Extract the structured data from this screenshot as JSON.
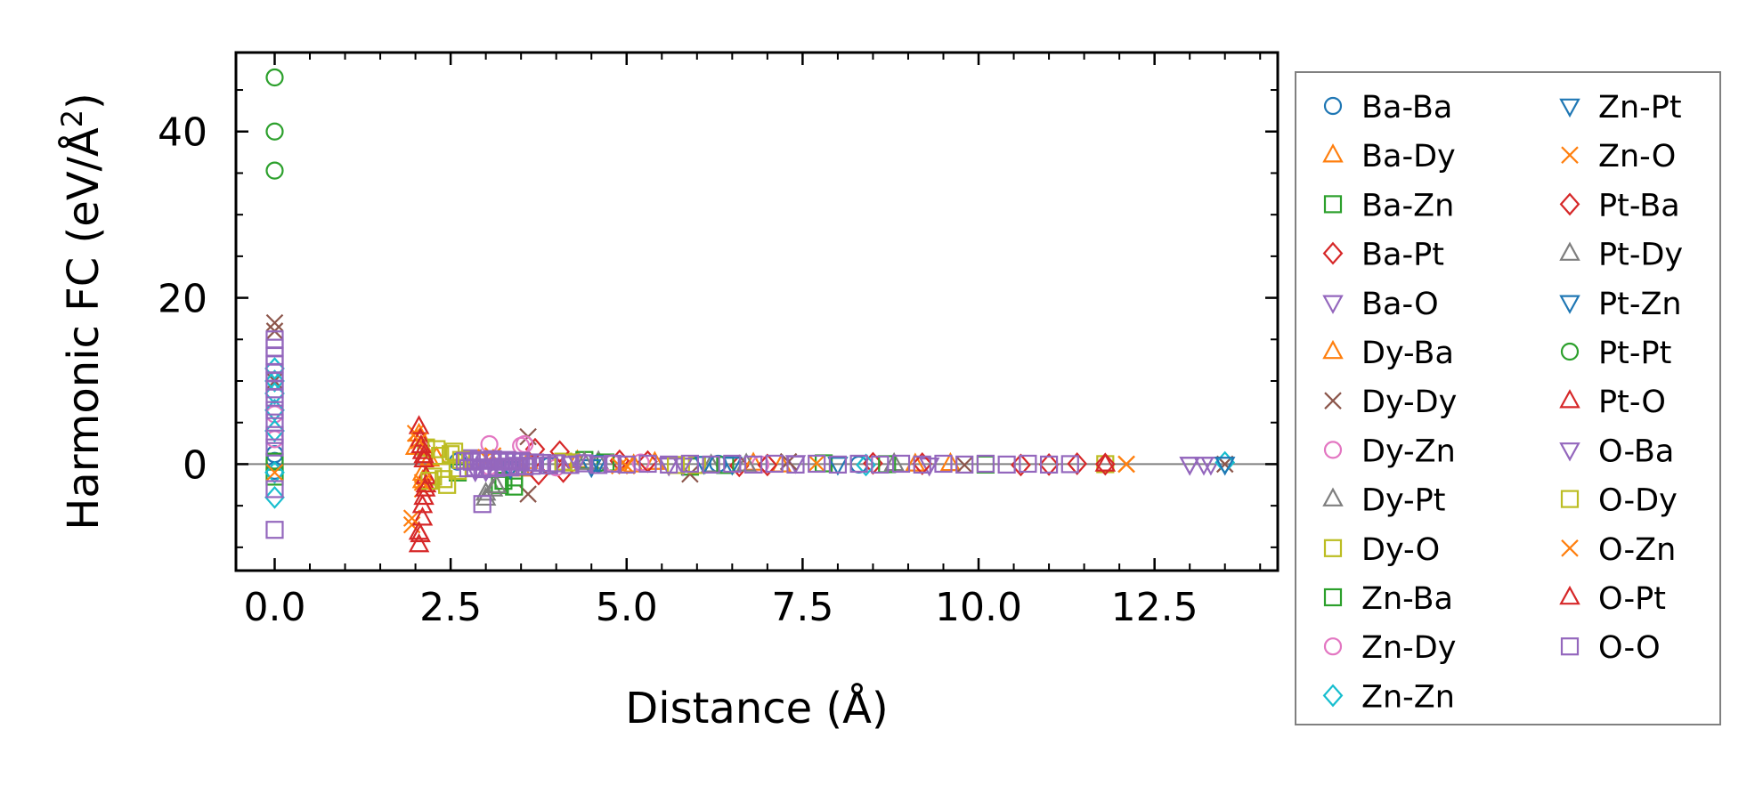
{
  "chart_data": {
    "type": "scatter",
    "title": "",
    "xlabel": "Distance (Å)",
    "ylabel": "Harmonic FC (eV/Å",
    "ylabel_sup": "2",
    "ylabel_end": ")",
    "xlim": [
      -0.55,
      14.25
    ],
    "ylim": [
      -12.8,
      49.5
    ],
    "xticks": [
      0.0,
      2.5,
      5.0,
      7.5,
      10.0,
      12.5
    ],
    "xtick_labels": [
      "0.0",
      "2.5",
      "5.0",
      "7.5",
      "10.0",
      "12.5"
    ],
    "yticks": [
      0,
      20,
      40
    ],
    "ytick_labels": [
      "0",
      "20",
      "40"
    ],
    "x_minor_step": 0.5,
    "y_minor_step": 5,
    "zero_line": 0,
    "legend_position": "right-outside",
    "series": [
      {
        "name": "Ba-Ba",
        "marker": "circle",
        "color": "#1f77b4",
        "x": [
          0,
          0,
          0,
          2.6,
          3.9,
          4.6,
          6.3,
          8.3
        ],
        "y": [
          1.2,
          -0.8,
          0.4,
          0.3,
          -0.2,
          0.1,
          0.05,
          -0.05
        ]
      },
      {
        "name": "Ba-Dy",
        "marker": "triangle-up",
        "color": "#ff7f0e",
        "x": [
          2.05,
          2.1,
          2.3,
          3.5,
          4.3,
          5.4,
          7.2,
          9.6
        ],
        "y": [
          3.6,
          -2.0,
          0.8,
          -0.6,
          0.4,
          0.2,
          -0.1,
          0.05
        ]
      },
      {
        "name": "Ba-Zn",
        "marker": "square",
        "color": "#2ca02c",
        "x": [
          2.6,
          3.2,
          3.4,
          4.4,
          5.9,
          7.8,
          10.1
        ],
        "y": [
          -1.0,
          -2.5,
          -1.6,
          0.5,
          -0.3,
          0.1,
          -0.05
        ]
      },
      {
        "name": "Ba-Pt",
        "marker": "diamond",
        "color": "#d62728",
        "x": [
          3.7,
          4.1,
          4.9,
          6.6,
          8.5,
          10.6,
          11.4
        ],
        "y": [
          1.8,
          -0.9,
          0.4,
          -0.2,
          0.1,
          -0.1,
          0.05
        ]
      },
      {
        "name": "Ba-O",
        "marker": "triangle-down",
        "color": "#9467bd",
        "x": [
          2.8,
          3.0,
          4.2,
          5.6,
          7.4,
          9.3,
          13.0,
          13.3
        ],
        "y": [
          0.9,
          -0.8,
          0.4,
          -0.1,
          0.2,
          -0.1,
          0.0,
          0.0
        ]
      },
      {
        "name": "Dy-Ba",
        "marker": "triangle-up",
        "color": "#ff7f0e",
        "x": [
          2.0,
          2.1,
          2.2,
          3.6,
          5.1,
          6.8,
          9.1
        ],
        "y": [
          2.0,
          -1.1,
          0.6,
          0.3,
          -0.1,
          0.1,
          0.0
        ]
      },
      {
        "name": "Dy-Dy",
        "marker": "x",
        "color": "#8c564b",
        "x": [
          0,
          0,
          0,
          3.6,
          3.6,
          5.9,
          7.3,
          9.8,
          13.5
        ],
        "y": [
          17.0,
          16.0,
          10.0,
          3.3,
          -3.6,
          -1.2,
          0.3,
          -0.1,
          0.0
        ]
      },
      {
        "name": "Dy-Zn",
        "marker": "circle",
        "color": "#e377c2",
        "x": [
          3.05,
          3.5,
          4.0,
          5.2,
          6.9
        ],
        "y": [
          2.4,
          2.2,
          -0.4,
          0.2,
          -0.05
        ]
      },
      {
        "name": "Dy-Pt",
        "marker": "triangle-up",
        "color": "#7f7f7f",
        "x": [
          3.0,
          3.1,
          4.6,
          6.2,
          8.8
        ],
        "y": [
          -4.1,
          -3.0,
          0.3,
          -0.1,
          0.05
        ]
      },
      {
        "name": "Dy-O",
        "marker": "square",
        "color": "#bcbd22",
        "x": [
          2.15,
          2.25,
          2.35,
          2.45,
          2.55,
          2.6,
          2.65,
          4.1,
          6.0,
          11.8
        ],
        "y": [
          2.0,
          -1.5,
          1.0,
          -2.5,
          1.5,
          -0.5,
          0.5,
          0.3,
          -0.1,
          0.0
        ]
      },
      {
        "name": "Zn-Ba",
        "marker": "square",
        "color": "#2ca02c",
        "x": [
          0,
          0,
          3.25,
          3.4,
          4.7,
          6.4,
          8.7
        ],
        "y": [
          0.3,
          -1.5,
          -2.0,
          -2.7,
          0.2,
          -0.1,
          0.0
        ]
      },
      {
        "name": "Zn-Dy",
        "marker": "circle",
        "color": "#e377c2",
        "x": [
          0,
          0,
          3.05,
          3.55,
          4.8
        ],
        "y": [
          3.0,
          6.0,
          -0.3,
          2.4,
          0.1
        ]
      },
      {
        "name": "Zn-Zn",
        "marker": "diamond",
        "color": "#17becf",
        "x": [
          0,
          0,
          0,
          0,
          0,
          0,
          0,
          8.4,
          13.5
        ],
        "y": [
          11.5,
          10.0,
          8.5,
          6.5,
          4.0,
          -1.0,
          -4.0,
          -0.1,
          0.2
        ]
      },
      {
        "name": "Zn-Pt",
        "marker": "triangle-down",
        "color": "#1f77b4",
        "x": [
          3.3,
          4.5,
          6.1,
          8.0,
          13.5
        ],
        "y": [
          0.5,
          -0.3,
          0.1,
          0.0,
          0.0
        ]
      },
      {
        "name": "Zn-O",
        "marker": "x",
        "color": "#ff7f0e",
        "x": [
          0,
          1.95,
          2.0,
          2.1,
          3.1,
          5.0,
          7.7,
          12.1
        ],
        "y": [
          -1.0,
          -7.3,
          3.7,
          -3.0,
          1.0,
          -0.2,
          0.1,
          0.0
        ]
      },
      {
        "name": "Pt-Ba",
        "marker": "diamond",
        "color": "#d62728",
        "x": [
          3.75,
          4.05,
          5.3,
          7.0,
          9.2,
          11.0,
          11.8
        ],
        "y": [
          -1.2,
          1.5,
          0.3,
          -0.1,
          0.05,
          -0.05,
          0.0
        ]
      },
      {
        "name": "Pt-Dy",
        "marker": "triangle-up",
        "color": "#7f7f7f",
        "x": [
          3.0,
          3.15,
          4.4,
          6.7
        ],
        "y": [
          -3.5,
          -2.6,
          0.2,
          0.0
        ]
      },
      {
        "name": "Pt-Zn",
        "marker": "triangle-down",
        "color": "#1f77b4",
        "x": [
          3.35,
          4.6,
          6.5
        ],
        "y": [
          -0.5,
          0.2,
          0.0
        ]
      },
      {
        "name": "Pt-Pt",
        "marker": "circle",
        "color": "#2ca02c",
        "x": [
          0,
          0,
          0
        ],
        "y": [
          46.5,
          40.0,
          35.3
        ]
      },
      {
        "name": "Pt-O",
        "marker": "triangle-up",
        "color": "#d62728",
        "x": [
          2.05,
          2.05,
          2.07,
          2.07,
          2.1,
          2.1,
          2.12,
          2.12,
          2.15,
          2.15,
          11.8
        ],
        "y": [
          4.5,
          -9.7,
          3.0,
          -8.5,
          1.5,
          -6.5,
          0.5,
          -4.0,
          -2.5,
          -1.5,
          0.0
        ]
      },
      {
        "name": "O-Ba",
        "marker": "triangle-down",
        "color": "#9467bd",
        "x": [
          2.85,
          3.1,
          4.3,
          5.8,
          13.0,
          13.2
        ],
        "y": [
          -0.8,
          0.6,
          0.3,
          -0.1,
          0.0,
          0.0
        ]
      },
      {
        "name": "O-Dy",
        "marker": "square",
        "color": "#bcbd22",
        "x": [
          2.2,
          2.3,
          2.4,
          2.5,
          2.6,
          4.2,
          5.7
        ],
        "y": [
          -2.0,
          1.8,
          -1.8,
          1.2,
          -0.8,
          0.2,
          -0.1
        ]
      },
      {
        "name": "O-Zn",
        "marker": "x",
        "color": "#ff7f0e",
        "x": [
          1.95,
          2.05,
          2.1,
          3.0,
          4.9,
          12.1
        ],
        "y": [
          -6.5,
          2.8,
          -2.2,
          0.8,
          -0.2,
          0.0
        ]
      },
      {
        "name": "O-Pt",
        "marker": "triangle-up",
        "color": "#d62728",
        "x": [
          2.05,
          2.08,
          2.1,
          2.12,
          2.14
        ],
        "y": [
          -8.2,
          2.2,
          -5.0,
          1.0,
          -3.0
        ]
      },
      {
        "name": "O-O",
        "marker": "square",
        "color": "#9467bd",
        "x": [
          0,
          0,
          0,
          0,
          0,
          0,
          0,
          0,
          0,
          0,
          0,
          0,
          0,
          0,
          2.7,
          2.75,
          2.8,
          2.85,
          2.9,
          2.95,
          3.0,
          3.05,
          3.1,
          3.15,
          3.2,
          3.25,
          3.3,
          3.35,
          3.4,
          3.45,
          3.5,
          3.55,
          3.6,
          3.65,
          3.7,
          3.8,
          3.9,
          4.0,
          4.2,
          4.4,
          4.6,
          4.8,
          5.0,
          5.3,
          5.6,
          5.9,
          6.2,
          6.5,
          6.8,
          7.1,
          7.4,
          7.7,
          8.0,
          8.3,
          8.6,
          8.9,
          9.2,
          9.5,
          9.8,
          10.1,
          10.4,
          10.7,
          11.0,
          11.3,
          2.95
        ],
        "y": [
          15.0,
          14.0,
          13.0,
          12.0,
          11.0,
          10.0,
          9.0,
          8.0,
          6.5,
          5.0,
          3.5,
          2.0,
          -3.0,
          -7.9,
          0.4,
          -0.5,
          0.3,
          -0.4,
          0.5,
          -0.6,
          0.4,
          -0.4,
          0.6,
          -0.5,
          0.3,
          -0.3,
          0.5,
          -0.4,
          0.3,
          -0.2,
          0.4,
          -0.3,
          0.2,
          -0.2,
          0.2,
          0.15,
          -0.15,
          0.1,
          -0.1,
          0.1,
          -0.1,
          0.05,
          -0.05,
          0.05,
          -0.05,
          0.05,
          -0.05,
          0.05,
          -0.05,
          0.05,
          -0.05,
          0.05,
          -0.05,
          0.05,
          -0.05,
          0.05,
          -0.05,
          0.05,
          -0.05,
          0.05,
          -0.05,
          0.05,
          -0.05,
          0.0,
          -4.8
        ]
      }
    ]
  }
}
